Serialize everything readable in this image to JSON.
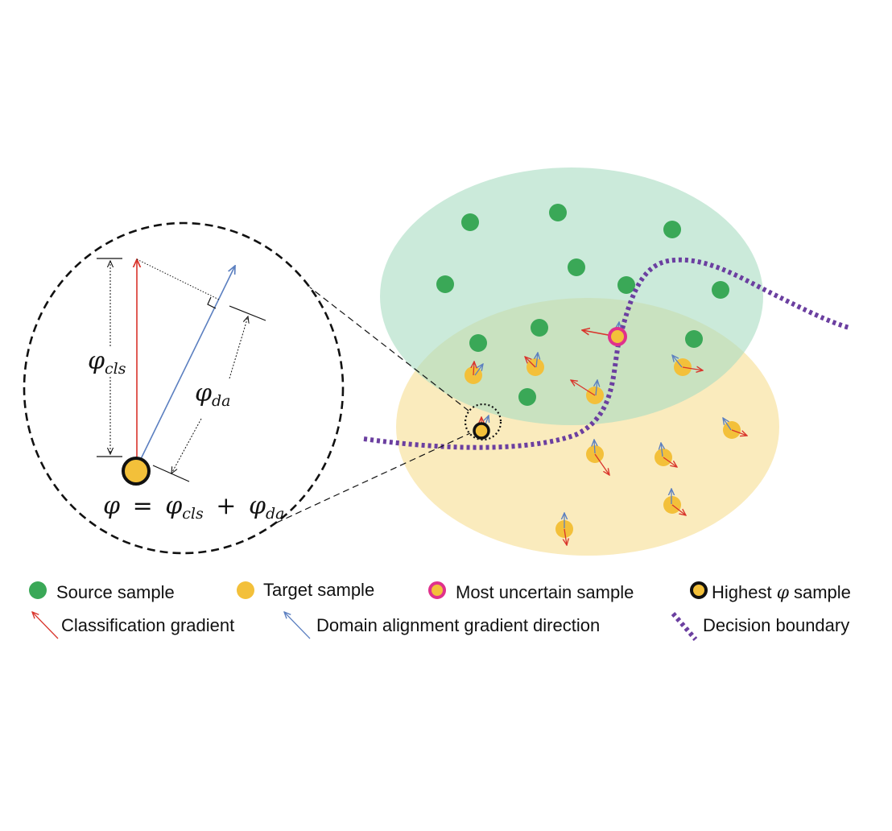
{
  "diagram": {
    "formula": {
      "phi": "φ",
      "equals": "=",
      "plus": "+",
      "sub_cls": "cls",
      "sub_da": "da"
    },
    "labels": {
      "phi_cls_main": "φ",
      "phi_cls_sub": "cls",
      "phi_da_main": "φ",
      "phi_da_sub": "da"
    },
    "colors": {
      "source_region": "#bfe6d2",
      "target_region": "#f9e7b1",
      "source_sample": "#3aa857",
      "target_sample": "#f3c03a",
      "uncertain_ring": "#e0318c",
      "highest_ring": "#111111",
      "classification_gradient": "#d9342b",
      "domain_gradient": "#5b7fc0",
      "decision_boundary": "#6b3fa0"
    }
  },
  "legend": {
    "row1": [
      {
        "label": "Source sample",
        "icon": "green-dot-icon"
      },
      {
        "label": "Target sample",
        "icon": "yellow-dot-icon"
      },
      {
        "label": "Most uncertain sample",
        "icon": "pink-ring-dot-icon"
      },
      {
        "label_prefix": "Highest",
        "label_symbol": "φ",
        "label_suffix": "sample",
        "icon": "black-ring-dot-icon"
      }
    ],
    "row2": [
      {
        "label": "Classification gradient",
        "icon": "red-arrow-icon"
      },
      {
        "label": "Domain alignment gradient direction",
        "icon": "blue-arrow-icon"
      },
      {
        "label": "Decision boundary",
        "icon": "purple-dotted-line-icon"
      }
    ]
  }
}
